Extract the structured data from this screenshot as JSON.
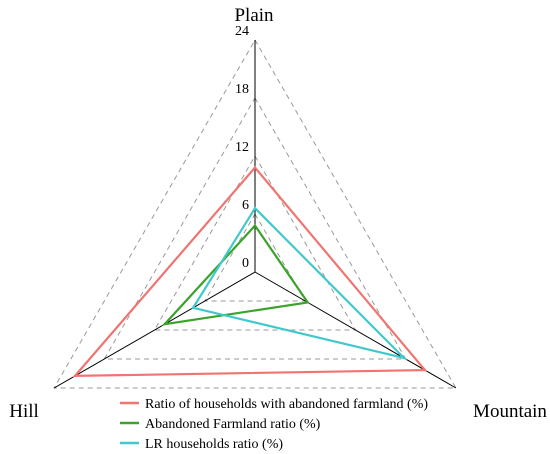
{
  "chart_data": {
    "type": "radar",
    "axes": [
      "Plain",
      "Mountain",
      "Hill"
    ],
    "r_ticks": [
      "0",
      "6",
      "12",
      "18",
      "24"
    ],
    "r_max": 24,
    "grid": "dashed",
    "legend_position": "bottom-center",
    "series": [
      {
        "name": "Ratio of households with abandoned farmland (%)",
        "color": "#f07470",
        "values": [
          10.8,
          20.3,
          21.5
        ]
      },
      {
        "name": "Abandoned Farmland ratio (%)",
        "color": "#3aa329",
        "values": [
          4.8,
          6.3,
          10.8
        ]
      },
      {
        "name": "LR households ratio (%)",
        "color": "#40c9cc",
        "values": [
          6.6,
          17.8,
          7.4
        ]
      }
    ]
  }
}
